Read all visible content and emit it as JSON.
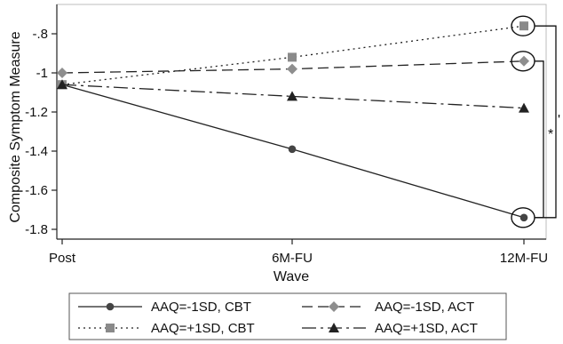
{
  "chart_data": {
    "type": "line",
    "xlabel": "Wave",
    "ylabel": "Composite Symptom Measure",
    "categories": [
      "Post",
      "6M-FU",
      "12M-FU"
    ],
    "ylim": [
      -1.85,
      -0.65
    ],
    "yticks": [
      -0.8,
      -1.0,
      -1.2,
      -1.4,
      -1.6,
      -1.8
    ],
    "ytick_labels": [
      "-.8",
      "-1",
      "-1.2",
      "-1.4",
      "-1.6",
      "-1.8"
    ],
    "grid": false,
    "legend_placement": "bottom",
    "series": [
      {
        "name": "AAQ=-1SD, CBT",
        "values": [
          -1.06,
          -1.39,
          -1.74
        ],
        "marker": "circle",
        "dash": "solid",
        "color": "#222222",
        "marker_color": "#444444"
      },
      {
        "name": "AAQ=-1SD, ACT",
        "values": [
          -1.0,
          -0.98,
          -0.94
        ],
        "marker": "diamond",
        "dash": "dashed",
        "color": "#222222",
        "marker_color": "#8e8e8e"
      },
      {
        "name": "AAQ=+1SD, CBT",
        "values": [
          -1.06,
          -0.92,
          -0.76
        ],
        "marker": "square",
        "dash": "dotted",
        "color": "#222222",
        "marker_color": "#8a8a8a"
      },
      {
        "name": "AAQ=+1SD, ACT",
        "values": [
          -1.06,
          -1.12,
          -1.18
        ],
        "marker": "triangle",
        "dash": "longdashdot",
        "color": "#222222",
        "marker_color": "#222222"
      }
    ],
    "annotations": [
      {
        "text": "*",
        "between": [
          "AAQ=-1SD, CBT",
          "AAQ=-1SD, ACT"
        ]
      },
      {
        "text": "'",
        "between": [
          "AAQ=-1SD, CBT",
          "AAQ=+1SD, CBT"
        ]
      }
    ]
  }
}
